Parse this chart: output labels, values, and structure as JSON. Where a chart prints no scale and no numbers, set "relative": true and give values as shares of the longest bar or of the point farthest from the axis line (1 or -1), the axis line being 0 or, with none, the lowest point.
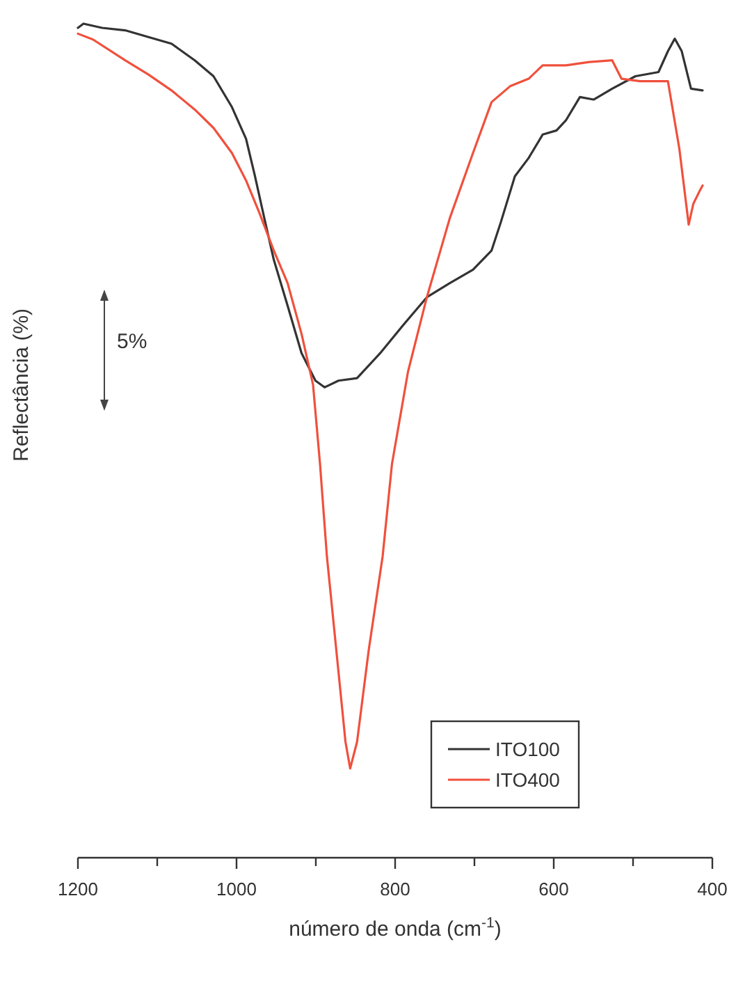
{
  "chart_data": {
    "type": "line",
    "relative": true,
    "xlabel": "número de onda (cm$^{-1}$)",
    "ylabel": "Reflectância (%)",
    "annotations": [
      "5%"
    ],
    "xlim": [
      1200,
      400
    ],
    "xticks": [
      1200,
      {
        "value": 1100,
        "label": null
      },
      1000,
      {
        "value": 900,
        "label": null
      },
      800,
      {
        "value": 700,
        "label": null
      },
      600,
      {
        "value": 500,
        "label": null
      },
      400
    ],
    "legend": "bottom right",
    "grid": false,
    "marker": "none",
    "line_style": "solid",
    "series": [
      {
        "name": "ITO100",
        "color": "#333333",
        "x": [
          1200,
          1193,
          1169.6,
          1140.4,
          1111,
          1082,
          1052.6,
          1029,
          1005.8,
          988,
          976.7,
          965,
          953,
          935.6,
          918,
          900.5,
          889,
          871.4,
          848,
          818.8,
          789.5,
          760,
          731,
          701.8,
          678.4,
          666.7,
          649,
          631.6,
          614,
          596.5,
          584.7,
          567,
          549.7,
          526.3,
          497,
          467.9,
          456,
          447.4,
          438.6,
          426.9,
          412.3
        ],
        "values": [
          0.995,
          1.0,
          0.995,
          0.992,
          0.984,
          0.976,
          0.956,
          0.937,
          0.9,
          0.862,
          0.817,
          0.767,
          0.717,
          0.662,
          0.605,
          0.572,
          0.564,
          0.572,
          0.575,
          0.605,
          0.639,
          0.672,
          0.689,
          0.705,
          0.728,
          0.762,
          0.817,
          0.839,
          0.867,
          0.872,
          0.884,
          0.912,
          0.909,
          0.922,
          0.937,
          0.942,
          0.967,
          0.982,
          0.967,
          0.922,
          0.92
        ]
      },
      {
        "name": "ITO400",
        "color": "#f0503c",
        "x": [
          1200,
          1181,
          1140.4,
          1111,
          1082,
          1052.6,
          1029,
          1005.8,
          988,
          970.7,
          953,
          935.6,
          918,
          903.5,
          894.7,
          886,
          874.2,
          862.6,
          856.7,
          848,
          833.3,
          815.8,
          804,
          783.7,
          760,
          731,
          701.8,
          678.4,
          655,
          631.6,
          614,
          584.7,
          555.6,
          526.3,
          514.6,
          491.2,
          456,
          441.6,
          429.8,
          424,
          415.2,
          412.3
        ],
        "values": [
          0.988,
          0.981,
          0.956,
          0.939,
          0.92,
          0.897,
          0.875,
          0.845,
          0.812,
          0.772,
          0.728,
          0.689,
          0.628,
          0.567,
          0.472,
          0.361,
          0.249,
          0.139,
          0.107,
          0.139,
          0.249,
          0.361,
          0.472,
          0.583,
          0.672,
          0.767,
          0.845,
          0.906,
          0.925,
          0.934,
          0.95,
          0.95,
          0.954,
          0.956,
          0.934,
          0.931,
          0.931,
          0.85,
          0.759,
          0.784,
          0.801,
          0.806
        ]
      }
    ]
  }
}
